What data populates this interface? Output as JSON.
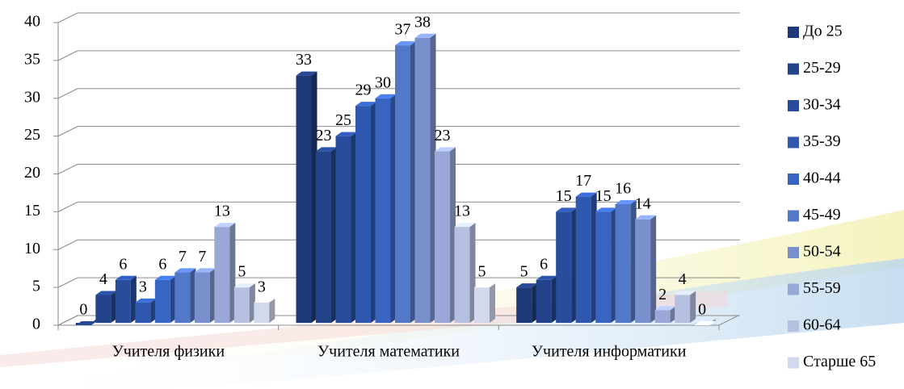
{
  "chart_data": {
    "type": "bar3d",
    "categories": [
      "Учителя физики",
      "Учителя математики",
      "Учителя информатики"
    ],
    "series": [
      {
        "name": "До 25",
        "color": "#1f3a78",
        "values": [
          0,
          33,
          5
        ]
      },
      {
        "name": "25-29",
        "color": "#23438a",
        "values": [
          4,
          23,
          6
        ]
      },
      {
        "name": "30-34",
        "color": "#294d9c",
        "values": [
          6,
          25,
          15
        ]
      },
      {
        "name": "35-39",
        "color": "#2f58ae",
        "values": [
          3,
          29,
          17
        ]
      },
      {
        "name": "40-44",
        "color": "#3965c2",
        "values": [
          6,
          30,
          15
        ]
      },
      {
        "name": "45-49",
        "color": "#5478c8",
        "values": [
          7,
          37,
          16
        ]
      },
      {
        "name": "50-54",
        "color": "#7a90cd",
        "values": [
          7,
          38,
          14
        ]
      },
      {
        "name": "55-59",
        "color": "#99a8d6",
        "values": [
          13,
          23,
          2
        ]
      },
      {
        "name": "60-64",
        "color": "#b6c0e0",
        "values": [
          5,
          13,
          4
        ]
      },
      {
        "name": "Старше 65",
        "color": "#d3d9ec",
        "values": [
          3,
          5,
          0
        ]
      }
    ],
    "ylim": [
      0,
      40
    ],
    "yticks": [
      0,
      5,
      10,
      15,
      20,
      25,
      30,
      35,
      40
    ],
    "grid": true,
    "legend": "right"
  }
}
